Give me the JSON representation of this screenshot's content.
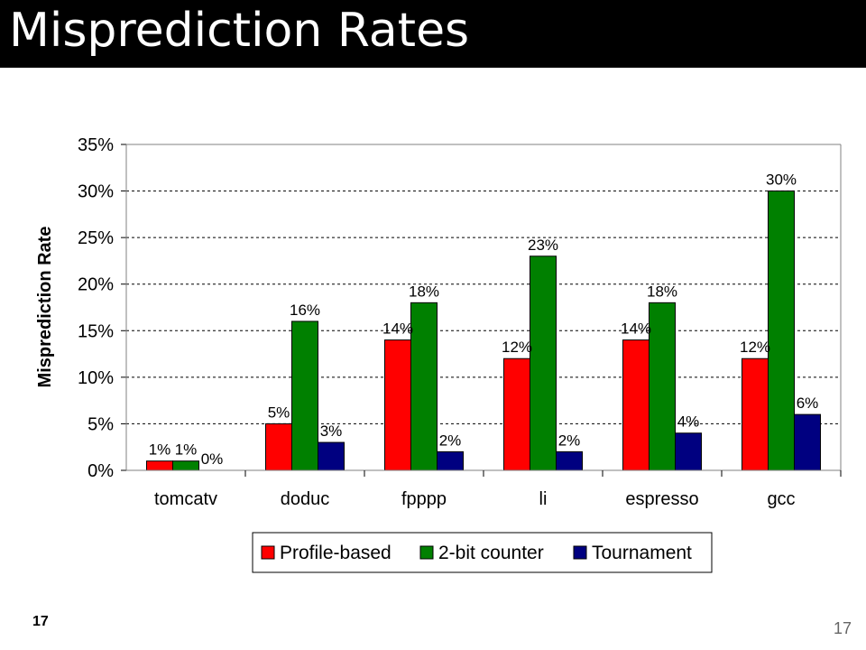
{
  "slide": {
    "title": "Misprediction Rates",
    "footer_left": "17",
    "footer_right": "17"
  },
  "chart_data": {
    "type": "bar",
    "title": "",
    "xlabel": "",
    "ylabel": "Misprediction Rate",
    "ylim": [
      0,
      0.35
    ],
    "yticks": [
      "0%",
      "5%",
      "10%",
      "15%",
      "20%",
      "25%",
      "30%",
      "35%"
    ],
    "grid": true,
    "legend_position": "bottom",
    "categories": [
      "tomcatv",
      "doduc",
      "fpppp",
      "li",
      "espresso",
      "gcc"
    ],
    "series": [
      {
        "name": "Profile-based",
        "color": "#ff0000",
        "values": [
          0.01,
          0.05,
          0.14,
          0.12,
          0.14,
          0.12
        ],
        "labels": [
          "1%",
          "5%",
          "14%",
          "12%",
          "14%",
          "12%"
        ]
      },
      {
        "name": "2-bit counter",
        "color": "#008000",
        "values": [
          0.01,
          0.16,
          0.18,
          0.23,
          0.18,
          0.3
        ],
        "labels": [
          "1%",
          "16%",
          "18%",
          "23%",
          "18%",
          "30%"
        ]
      },
      {
        "name": "Tournament",
        "color": "#000080",
        "values": [
          0.0,
          0.03,
          0.02,
          0.02,
          0.04,
          0.06
        ],
        "labels": [
          "0%",
          "3%",
          "2%",
          "2%",
          "4%",
          "6%"
        ]
      }
    ]
  }
}
